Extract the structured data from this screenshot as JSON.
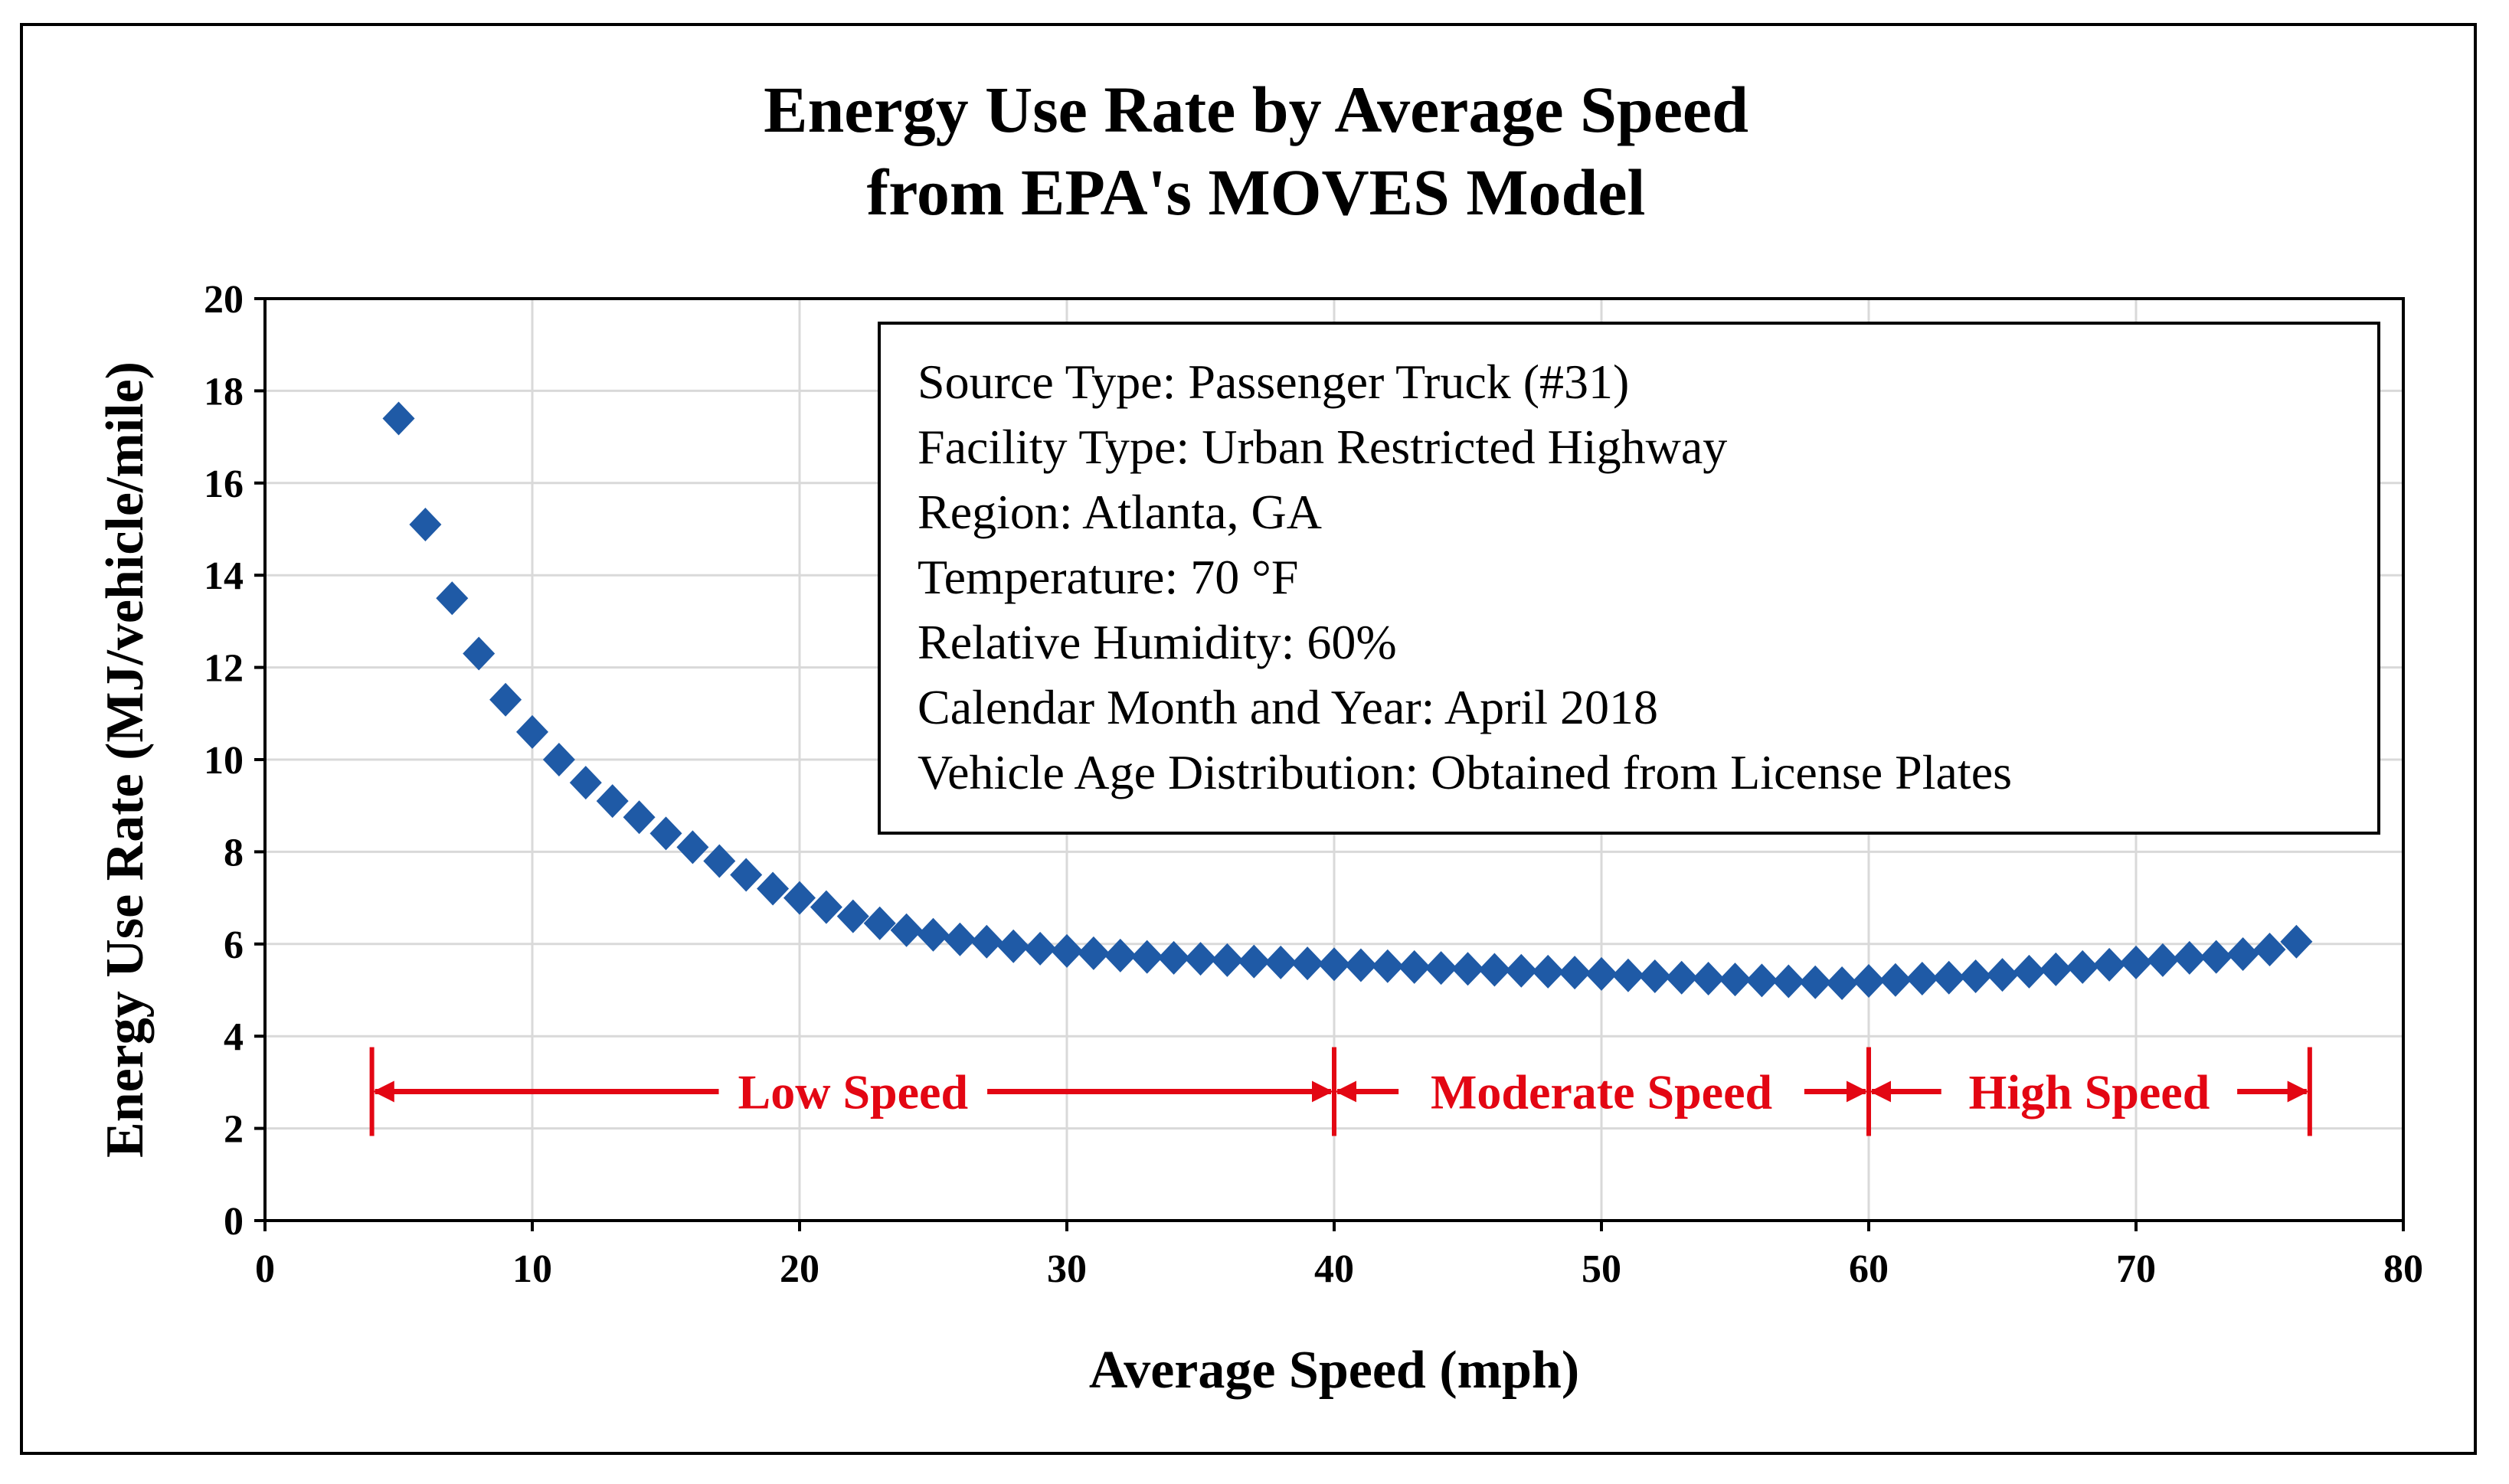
{
  "chart_data": {
    "type": "scatter",
    "title": [
      "Energy Use Rate by Average Speed",
      "from EPA's MOVES Model"
    ],
    "xlabel": "Average Speed (mph)",
    "ylabel": "Energy  Use Rate (MJ/vehicle/mile)",
    "xlim": [
      0,
      80
    ],
    "ylim": [
      0,
      20
    ],
    "x_ticks": [
      0,
      10,
      20,
      30,
      40,
      50,
      60,
      70,
      80
    ],
    "y_ticks": [
      0,
      2,
      4,
      6,
      8,
      10,
      12,
      14,
      16,
      18,
      20
    ],
    "grid": "vertical and horizontal",
    "marker": "diamond",
    "series": [
      {
        "name": "Energy Use Rate",
        "color": "#1F5AA6",
        "x": [
          5,
          6,
          7,
          8,
          9,
          10,
          11,
          12,
          13,
          14,
          15,
          16,
          17,
          18,
          19,
          20,
          21,
          22,
          23,
          24,
          25,
          26,
          27,
          28,
          29,
          30,
          31,
          32,
          33,
          34,
          35,
          36,
          37,
          38,
          39,
          40,
          41,
          42,
          43,
          44,
          45,
          46,
          47,
          48,
          49,
          50,
          51,
          52,
          53,
          54,
          55,
          56,
          57,
          58,
          59,
          60,
          61,
          62,
          63,
          64,
          65,
          66,
          67,
          68,
          69,
          70,
          71,
          72,
          73,
          74,
          75,
          76
        ],
        "y": [
          17.4,
          15.1,
          13.5,
          12.3,
          11.3,
          10.6,
          10.0,
          9.5,
          9.1,
          8.75,
          8.4,
          8.1,
          7.8,
          7.5,
          7.2,
          7.0,
          6.8,
          6.6,
          6.45,
          6.3,
          6.2,
          6.1,
          6.05,
          5.95,
          5.9,
          5.85,
          5.8,
          5.75,
          5.72,
          5.7,
          5.68,
          5.65,
          5.62,
          5.6,
          5.58,
          5.56,
          5.54,
          5.52,
          5.5,
          5.48,
          5.46,
          5.44,
          5.42,
          5.4,
          5.38,
          5.35,
          5.32,
          5.3,
          5.27,
          5.25,
          5.23,
          5.21,
          5.19,
          5.17,
          5.15,
          5.2,
          5.22,
          5.25,
          5.27,
          5.3,
          5.33,
          5.4,
          5.45,
          5.5,
          5.55,
          5.6,
          5.65,
          5.7,
          5.72,
          5.78,
          5.88,
          6.05
        ]
      }
    ],
    "annotations": {
      "info_box": [
        "Source Type: Passenger Truck (#31)",
        "Facility  Type: Urban Restricted Highway",
        "Region: Atlanta, GA",
        "Temperature: 70 °F",
        "Relative  Humidity:  60%",
        "Calendar Month and Year: April  2018",
        "Vehicle Age Distribution:  Obtained from License Plates"
      ],
      "speed_ranges": [
        {
          "label": "Low Speed",
          "from": 4,
          "to": 40
        },
        {
          "label": "Moderate Speed",
          "from": 40,
          "to": 60
        },
        {
          "label": "High Speed",
          "from": 60,
          "to": 76.5
        }
      ],
      "range_y": 2.8,
      "range_color": "#E30613"
    }
  }
}
